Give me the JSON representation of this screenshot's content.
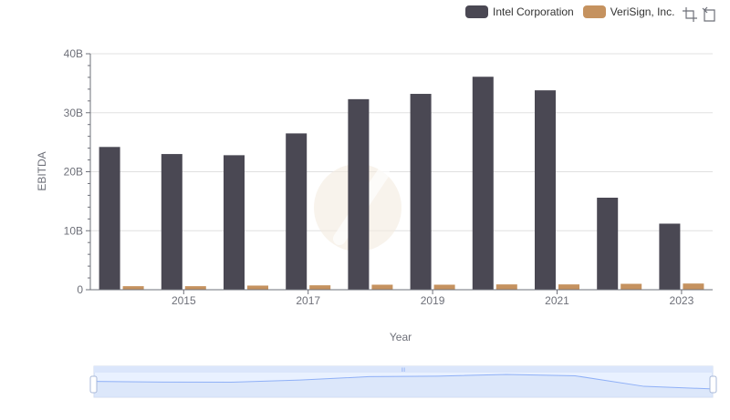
{
  "colors": {
    "intel": "#4a4853",
    "verisign": "#c5925f",
    "grid": "#e0e0e0",
    "axis": "#6e7079",
    "zoom_fill": "#d5e2f8",
    "zoom_line": "#8fb0f7"
  },
  "legend": {
    "items": [
      "Intel Corporation",
      "VeriSign, Inc."
    ]
  },
  "toolbox": {
    "icons": [
      "zoom-icon",
      "zoom-reset-icon"
    ]
  },
  "chart_data": {
    "type": "bar",
    "x": [
      2014,
      2015,
      2016,
      2017,
      2018,
      2019,
      2020,
      2021,
      2022,
      2023
    ],
    "xticks": [
      "2015",
      "2017",
      "2019",
      "2021",
      "2023"
    ],
    "xtick_values": [
      2015,
      2017,
      2019,
      2021,
      2023
    ],
    "series": [
      {
        "name": "Intel Corporation",
        "values": [
          24.2,
          23.0,
          22.8,
          26.5,
          32.3,
          33.2,
          36.1,
          33.8,
          15.6,
          11.2
        ]
      },
      {
        "name": "VeriSign, Inc.",
        "values": [
          0.6,
          0.6,
          0.7,
          0.75,
          0.85,
          0.85,
          0.9,
          0.9,
          1.0,
          1.05
        ]
      }
    ],
    "xlabel": "Year",
    "ylabel": "EBITDA",
    "ylim": [
      0,
      40
    ],
    "yticks": [
      "0",
      "10B",
      "20B",
      "30B",
      "40B"
    ],
    "ytick_values": [
      0,
      10,
      20,
      30,
      40
    ],
    "grid": true,
    "legend_position": "top-right",
    "zoom_slider": {
      "range": [
        0,
        100
      ],
      "handle_label": "III"
    }
  }
}
